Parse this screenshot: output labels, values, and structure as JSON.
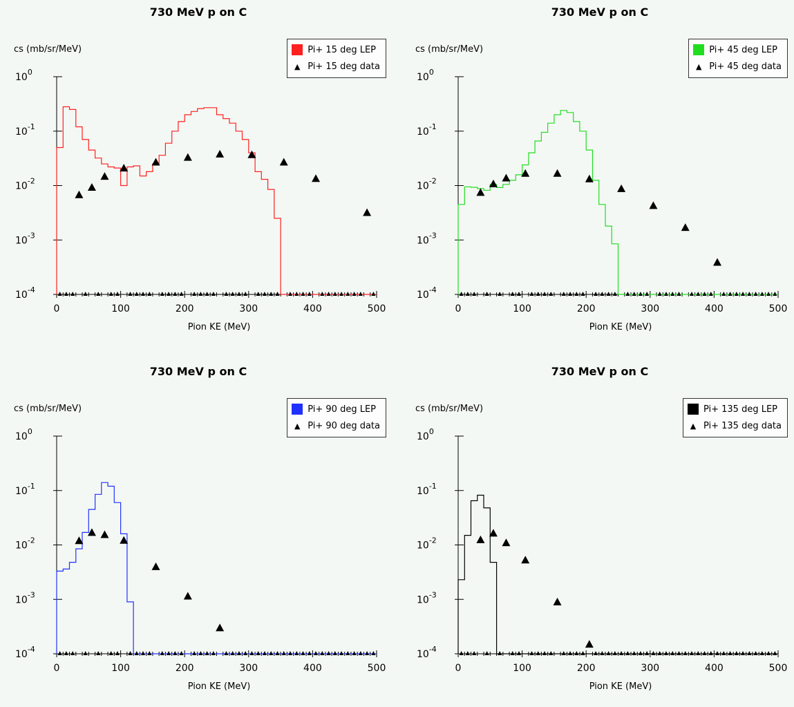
{
  "chart_data": [
    {
      "type": "line",
      "title": "730 MeV p on C",
      "xlabel": "Pion KE (MeV)",
      "ylabel": "cs (mb/sr/MeV)",
      "xlim": [
        0,
        500
      ],
      "ylim": [
        0.0001,
        1
      ],
      "yscale": "log",
      "xticks": [
        "0",
        "100",
        "200",
        "300",
        "400",
        "500"
      ],
      "yticks": [
        {
          "base": "10",
          "exp": "-4"
        },
        {
          "base": "10",
          "exp": "-3"
        },
        {
          "base": "10",
          "exp": "-2"
        },
        {
          "base": "10",
          "exp": "-1"
        },
        {
          "base": "10",
          "exp": "0"
        }
      ],
      "legend_position": "top-right",
      "series": [
        {
          "name": "Pi+ 15 deg LEP",
          "style": "step",
          "color": "#ff2020",
          "x": [
            0,
            10,
            20,
            30,
            40,
            50,
            60,
            70,
            80,
            90,
            100,
            110,
            120,
            130,
            140,
            150,
            160,
            170,
            180,
            190,
            200,
            210,
            220,
            230,
            240,
            250,
            260,
            270,
            280,
            290,
            300,
            310,
            320,
            330,
            340,
            350
          ],
          "y": [
            0.05,
            0.28,
            0.25,
            0.12,
            0.07,
            0.045,
            0.032,
            0.025,
            0.022,
            0.021,
            0.01,
            0.022,
            0.023,
            0.015,
            0.018,
            0.025,
            0.036,
            0.06,
            0.1,
            0.15,
            0.2,
            0.23,
            0.26,
            0.27,
            0.27,
            0.2,
            0.17,
            0.14,
            0.1,
            0.07,
            0.04,
            0.018,
            0.013,
            0.0085,
            0.0025,
            0.0001
          ]
        },
        {
          "name": "Pi+ 15 deg data",
          "style": "marker",
          "color": "#000000",
          "x": [
            35,
            55,
            75,
            105,
            155,
            205,
            255,
            305,
            355,
            405,
            485
          ],
          "y": [
            0.0068,
            0.0093,
            0.0148,
            0.021,
            0.027,
            0.033,
            0.038,
            0.037,
            0.027,
            0.0135,
            0.0032
          ]
        }
      ]
    },
    {
      "type": "line",
      "title": "730 MeV p on C",
      "xlabel": "Pion KE (MeV)",
      "ylabel": "cs (mb/sr/MeV)",
      "xlim": [
        0,
        500
      ],
      "ylim": [
        0.0001,
        1
      ],
      "yscale": "log",
      "xticks": [
        "0",
        "100",
        "200",
        "300",
        "400",
        "500"
      ],
      "yticks": [
        {
          "base": "10",
          "exp": "-4"
        },
        {
          "base": "10",
          "exp": "-3"
        },
        {
          "base": "10",
          "exp": "-2"
        },
        {
          "base": "10",
          "exp": "-1"
        },
        {
          "base": "10",
          "exp": "0"
        }
      ],
      "legend_position": "top-right",
      "series": [
        {
          "name": "Pi+ 45 deg LEP",
          "style": "step",
          "color": "#20dd20",
          "x": [
            0,
            10,
            20,
            30,
            40,
            50,
            60,
            70,
            80,
            90,
            100,
            110,
            120,
            130,
            140,
            150,
            160,
            170,
            180,
            190,
            200,
            210,
            220,
            230,
            240,
            250,
            260
          ],
          "y": [
            0.0045,
            0.0095,
            0.0093,
            0.0088,
            0.0082,
            0.0105,
            0.0092,
            0.0105,
            0.0125,
            0.0158,
            0.024,
            0.04,
            0.066,
            0.095,
            0.14,
            0.2,
            0.24,
            0.22,
            0.15,
            0.1,
            0.045,
            0.0125,
            0.0045,
            0.0018,
            0.00085,
            0.0001,
            0.0001
          ]
        },
        {
          "name": "Pi+ 45 deg data",
          "style": "marker",
          "color": "#000000",
          "x": [
            35,
            55,
            75,
            105,
            155,
            205,
            255,
            305,
            355,
            405
          ],
          "y": [
            0.0075,
            0.0108,
            0.0138,
            0.0168,
            0.0168,
            0.0133,
            0.0088,
            0.0043,
            0.0017,
            0.00039
          ]
        }
      ]
    },
    {
      "type": "line",
      "title": "730 MeV p on C",
      "xlabel": "Pion KE (MeV)",
      "ylabel": "cs (mb/sr/MeV)",
      "xlim": [
        0,
        500
      ],
      "ylim": [
        0.0001,
        1
      ],
      "yscale": "log",
      "xticks": [
        "0",
        "100",
        "200",
        "300",
        "400",
        "500"
      ],
      "yticks": [
        {
          "base": "10",
          "exp": "-4"
        },
        {
          "base": "10",
          "exp": "-3"
        },
        {
          "base": "10",
          "exp": "-2"
        },
        {
          "base": "10",
          "exp": "-1"
        },
        {
          "base": "10",
          "exp": "0"
        }
      ],
      "legend_position": "top-right",
      "series": [
        {
          "name": "Pi+ 90 deg LEP",
          "style": "step",
          "color": "#2030ff",
          "x": [
            0,
            10,
            20,
            30,
            40,
            50,
            60,
            70,
            80,
            90,
            100,
            110,
            120,
            130
          ],
          "y": [
            0.0033,
            0.0036,
            0.0048,
            0.0085,
            0.017,
            0.045,
            0.085,
            0.14,
            0.12,
            0.06,
            0.016,
            0.0009,
            0.0001,
            0.0001
          ]
        },
        {
          "name": "Pi+ 90 deg data",
          "style": "marker",
          "color": "#000000",
          "x": [
            35,
            55,
            75,
            105,
            155,
            205,
            255
          ],
          "y": [
            0.012,
            0.017,
            0.0155,
            0.0122,
            0.004,
            0.00115,
            0.0003
          ]
        }
      ]
    },
    {
      "type": "line",
      "title": "730 MeV p on C",
      "xlabel": "Pion KE (MeV)",
      "ylabel": "cs (mb/sr/MeV)",
      "xlim": [
        0,
        500
      ],
      "ylim": [
        0.0001,
        1
      ],
      "yscale": "log",
      "xticks": [
        "0",
        "100",
        "200",
        "300",
        "400",
        "500"
      ],
      "yticks": [
        {
          "base": "10",
          "exp": "-4"
        },
        {
          "base": "10",
          "exp": "-3"
        },
        {
          "base": "10",
          "exp": "-2"
        },
        {
          "base": "10",
          "exp": "-1"
        },
        {
          "base": "10",
          "exp": "0"
        }
      ],
      "legend_position": "top-right",
      "series": [
        {
          "name": "Pi+ 135 deg LEP",
          "style": "step",
          "color": "#000000",
          "x": [
            0,
            10,
            20,
            30,
            40,
            50,
            60,
            70
          ],
          "y": [
            0.0023,
            0.015,
            0.065,
            0.082,
            0.048,
            0.0048,
            0.0001,
            0.0001
          ]
        },
        {
          "name": "Pi+ 135 deg data",
          "style": "marker",
          "color": "#000000",
          "x": [
            35,
            55,
            75,
            105,
            155,
            205
          ],
          "y": [
            0.0125,
            0.0165,
            0.011,
            0.0053,
            0.0009,
            0.00015
          ]
        }
      ]
    }
  ]
}
